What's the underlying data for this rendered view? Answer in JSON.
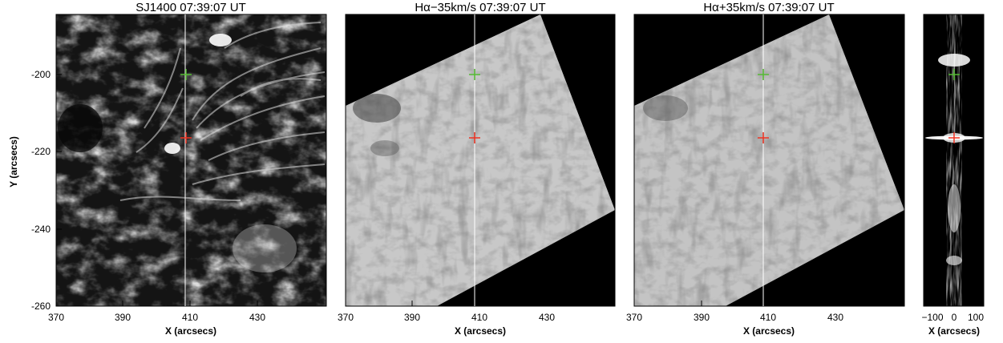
{
  "panels": [
    {
      "title": "SJ1400  07:39:07  UT",
      "xlabel": "X (arcsecs)",
      "ylabel": "Y (arcsecs)",
      "xticks": [
        "370",
        "390",
        "410",
        "430"
      ],
      "yticks": [
        "-200",
        "-220",
        "-240",
        "-260"
      ]
    },
    {
      "title": "Hα−35km/s  07:39:07  UT",
      "xlabel": "X (arcsecs)",
      "xticks": [
        "370",
        "390",
        "410",
        "430"
      ]
    },
    {
      "title": "Hα+35km/s  07:39:07  UT",
      "xlabel": "X (arcsecs)",
      "xticks": [
        "370",
        "390",
        "410",
        "430"
      ]
    },
    {
      "title": "",
      "xlabel": "X (arcsecs)",
      "xticks": [
        "−100",
        "0",
        "100"
      ]
    }
  ],
  "colors": {
    "green_marker": "#55bb33",
    "red_marker": "#ee3322",
    "slit": "#ffffff"
  },
  "markers": {
    "green_y": -200,
    "red_y": -216,
    "slit_x": 404
  }
}
